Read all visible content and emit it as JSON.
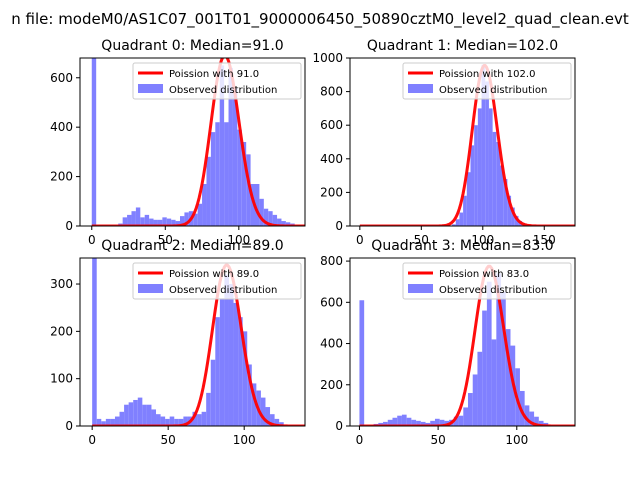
{
  "chart_data": {
    "suptitle": "n file: modeM0/AS1C07_001T01_9000006450_50890cztM0_level2_quad_clean.evt",
    "colors": {
      "curve": "#ff0000",
      "hist": "#8080ff",
      "frame": "#000000"
    },
    "panels": [
      {
        "type": "bar",
        "title": "Quadrant 0: Median=91.0",
        "median": 91,
        "peak": 690,
        "xlim": [
          -8,
          145
        ],
        "ylim": [
          0,
          680
        ],
        "xticks": [
          0,
          50,
          100
        ],
        "yticks": [
          0,
          200,
          400,
          600
        ],
        "legend": {
          "placement": "top-right",
          "curve_label": "Poission with 91.0",
          "hist_label": "Observed distribution"
        },
        "bins": [
          [
            0,
            3,
            680
          ],
          [
            3,
            6,
            0
          ],
          [
            6,
            9,
            0
          ],
          [
            9,
            12,
            0
          ],
          [
            12,
            15,
            0
          ],
          [
            15,
            18,
            0
          ],
          [
            18,
            21,
            10
          ],
          [
            21,
            24,
            35
          ],
          [
            24,
            27,
            45
          ],
          [
            27,
            30,
            60
          ],
          [
            30,
            33,
            75
          ],
          [
            33,
            36,
            35
          ],
          [
            36,
            39,
            45
          ],
          [
            39,
            42,
            30
          ],
          [
            42,
            45,
            25
          ],
          [
            45,
            48,
            25
          ],
          [
            48,
            51,
            35
          ],
          [
            51,
            54,
            30
          ],
          [
            54,
            57,
            25
          ],
          [
            57,
            60,
            20
          ],
          [
            60,
            63,
            40
          ],
          [
            63,
            66,
            55
          ],
          [
            66,
            69,
            60
          ],
          [
            69,
            72,
            50
          ],
          [
            72,
            75,
            90
          ],
          [
            75,
            78,
            170
          ],
          [
            78,
            81,
            280
          ],
          [
            81,
            84,
            380
          ],
          [
            84,
            87,
            420
          ],
          [
            87,
            90,
            650
          ],
          [
            90,
            93,
            420
          ],
          [
            93,
            96,
            640
          ],
          [
            96,
            99,
            560
          ],
          [
            99,
            102,
            390
          ],
          [
            102,
            105,
            340
          ],
          [
            105,
            108,
            290
          ],
          [
            108,
            111,
            170
          ],
          [
            111,
            114,
            170
          ],
          [
            114,
            117,
            110
          ],
          [
            117,
            120,
            70
          ],
          [
            120,
            123,
            60
          ],
          [
            123,
            126,
            45
          ],
          [
            126,
            129,
            30
          ],
          [
            129,
            132,
            20
          ],
          [
            132,
            135,
            15
          ],
          [
            135,
            138,
            10
          ]
        ]
      },
      {
        "type": "bar",
        "title": "Quadrant 1: Median=102.0",
        "median": 102,
        "peak": 955,
        "xlim": [
          -8,
          175
        ],
        "ylim": [
          0,
          1000
        ],
        "xticks": [
          0,
          50,
          100,
          150
        ],
        "yticks": [
          0,
          200,
          400,
          600,
          800,
          1000
        ],
        "legend": {
          "placement": "top-right",
          "curve_label": "Poission with 102.0",
          "hist_label": "Observed distribution"
        },
        "bins": [
          [
            75,
            78,
            10
          ],
          [
            78,
            81,
            40
          ],
          [
            81,
            84,
            80
          ],
          [
            84,
            87,
            180
          ],
          [
            87,
            90,
            320
          ],
          [
            90,
            93,
            480
          ],
          [
            93,
            96,
            600
          ],
          [
            96,
            99,
            700
          ],
          [
            99,
            102,
            960
          ],
          [
            102,
            105,
            860
          ],
          [
            105,
            108,
            700
          ],
          [
            108,
            111,
            560
          ],
          [
            111,
            114,
            500
          ],
          [
            114,
            117,
            360
          ],
          [
            117,
            120,
            280
          ],
          [
            120,
            123,
            180
          ],
          [
            123,
            126,
            110
          ],
          [
            126,
            129,
            60
          ],
          [
            129,
            132,
            30
          ],
          [
            132,
            135,
            15
          ],
          [
            135,
            138,
            10
          ]
        ]
      },
      {
        "type": "bar",
        "title": "Quadrant 2: Median=89.0",
        "median": 89,
        "peak": 340,
        "xlim": [
          -8,
          140
        ],
        "ylim": [
          0,
          355
        ],
        "xticks": [
          0,
          50,
          100
        ],
        "yticks": [
          0,
          100,
          200,
          300
        ],
        "legend": {
          "placement": "top-right",
          "curve_label": "Poission with 89.0",
          "hist_label": "Observed distribution"
        },
        "bins": [
          [
            0,
            3,
            355
          ],
          [
            3,
            6,
            15
          ],
          [
            6,
            9,
            10
          ],
          [
            9,
            12,
            15
          ],
          [
            12,
            15,
            15
          ],
          [
            15,
            18,
            20
          ],
          [
            18,
            21,
            30
          ],
          [
            21,
            24,
            45
          ],
          [
            24,
            27,
            50
          ],
          [
            27,
            30,
            55
          ],
          [
            30,
            33,
            60
          ],
          [
            33,
            36,
            45
          ],
          [
            36,
            39,
            45
          ],
          [
            39,
            42,
            35
          ],
          [
            42,
            45,
            25
          ],
          [
            45,
            48,
            20
          ],
          [
            48,
            51,
            15
          ],
          [
            51,
            54,
            20
          ],
          [
            54,
            57,
            15
          ],
          [
            57,
            60,
            15
          ],
          [
            60,
            63,
            20
          ],
          [
            63,
            66,
            20
          ],
          [
            66,
            69,
            30
          ],
          [
            69,
            72,
            25
          ],
          [
            72,
            75,
            30
          ],
          [
            75,
            78,
            70
          ],
          [
            78,
            81,
            140
          ],
          [
            81,
            84,
            230
          ],
          [
            84,
            87,
            270
          ],
          [
            87,
            90,
            320
          ],
          [
            90,
            93,
            300
          ],
          [
            93,
            96,
            260
          ],
          [
            96,
            99,
            230
          ],
          [
            99,
            102,
            200
          ],
          [
            102,
            105,
            130
          ],
          [
            105,
            108,
            90
          ],
          [
            108,
            111,
            75
          ],
          [
            111,
            114,
            60
          ],
          [
            114,
            117,
            40
          ],
          [
            117,
            120,
            25
          ],
          [
            120,
            123,
            15
          ],
          [
            123,
            126,
            8
          ]
        ]
      },
      {
        "type": "bar",
        "title": "Quadrant 3: Median=83.0",
        "median": 83,
        "peak": 775,
        "xlim": [
          -6,
          137
        ],
        "ylim": [
          0,
          815
        ],
        "xticks": [
          0,
          50,
          100
        ],
        "yticks": [
          0,
          200,
          400,
          600,
          800
        ],
        "legend": {
          "placement": "top-right",
          "curve_label": "Poission with 83.0",
          "hist_label": "Observed distribution"
        },
        "bins": [
          [
            0,
            3,
            610
          ],
          [
            3,
            6,
            0
          ],
          [
            6,
            9,
            0
          ],
          [
            9,
            12,
            10
          ],
          [
            12,
            15,
            15
          ],
          [
            15,
            18,
            20
          ],
          [
            18,
            21,
            30
          ],
          [
            21,
            24,
            40
          ],
          [
            24,
            27,
            50
          ],
          [
            27,
            30,
            55
          ],
          [
            30,
            33,
            40
          ],
          [
            33,
            36,
            30
          ],
          [
            36,
            39,
            25
          ],
          [
            39,
            42,
            20
          ],
          [
            42,
            45,
            15
          ],
          [
            45,
            48,
            25
          ],
          [
            48,
            51,
            35
          ],
          [
            51,
            54,
            30
          ],
          [
            54,
            57,
            25
          ],
          [
            57,
            60,
            30
          ],
          [
            60,
            63,
            45
          ],
          [
            63,
            66,
            50
          ],
          [
            66,
            69,
            90
          ],
          [
            69,
            72,
            160
          ],
          [
            72,
            75,
            250
          ],
          [
            75,
            78,
            360
          ],
          [
            78,
            81,
            560
          ],
          [
            81,
            84,
            700
          ],
          [
            84,
            87,
            420
          ],
          [
            87,
            90,
            740
          ],
          [
            90,
            93,
            650
          ],
          [
            93,
            96,
            470
          ],
          [
            96,
            99,
            390
          ],
          [
            99,
            102,
            280
          ],
          [
            102,
            105,
            170
          ],
          [
            105,
            108,
            100
          ],
          [
            108,
            111,
            70
          ],
          [
            111,
            114,
            45
          ],
          [
            114,
            117,
            25
          ],
          [
            117,
            120,
            15
          ]
        ]
      }
    ]
  }
}
